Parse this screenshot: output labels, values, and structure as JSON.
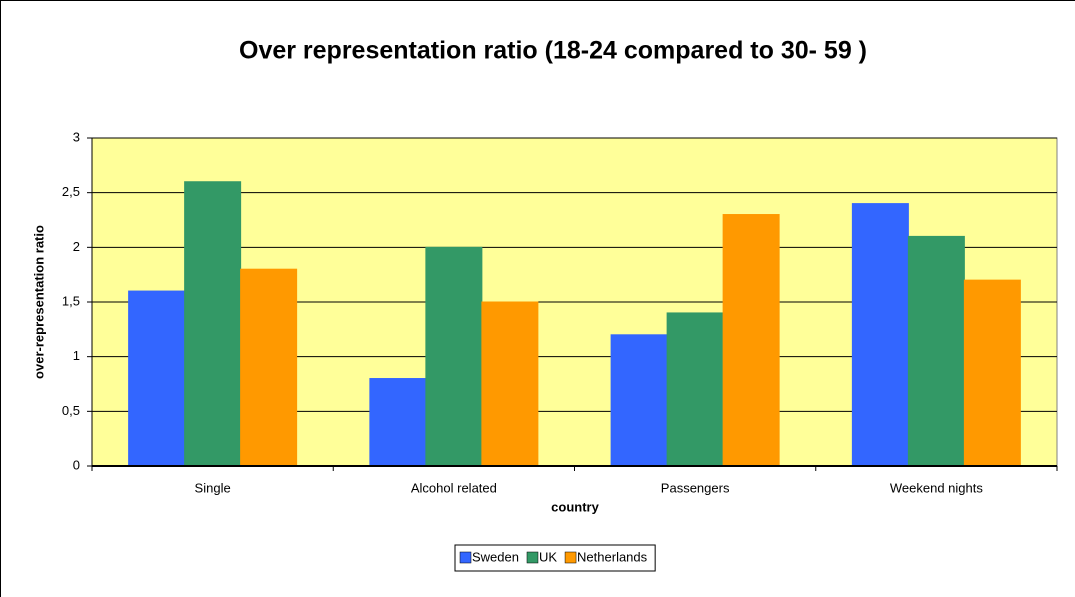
{
  "chart_data": {
    "type": "bar",
    "title": "Over representation ratio (18-24 compared to 30- 59 )",
    "x_label": "country",
    "y_label": "over-representation ratio",
    "categories": [
      "Single",
      "Alcohol related",
      "Passengers",
      "Weekend nights"
    ],
    "series": [
      {
        "name": "Sweden",
        "color": "#3366ff",
        "values": [
          1.6,
          0.8,
          1.2,
          2.4
        ]
      },
      {
        "name": "UK",
        "color": "#339966",
        "values": [
          2.6,
          2.0,
          1.4,
          2.1
        ]
      },
      {
        "name": "Netherlands",
        "color": "#ff9900",
        "values": [
          1.8,
          1.5,
          2.3,
          1.7
        ]
      }
    ],
    "ylim": [
      0,
      3
    ],
    "yticks": [
      0,
      {
        "value": 0.5,
        "label": "0,5"
      },
      1,
      {
        "value": 1.5,
        "label": "1,5"
      },
      2,
      {
        "value": 2.5,
        "label": "2,5"
      },
      3
    ],
    "grid": true,
    "legend": "bottom",
    "plot_background": "#ffff99"
  }
}
